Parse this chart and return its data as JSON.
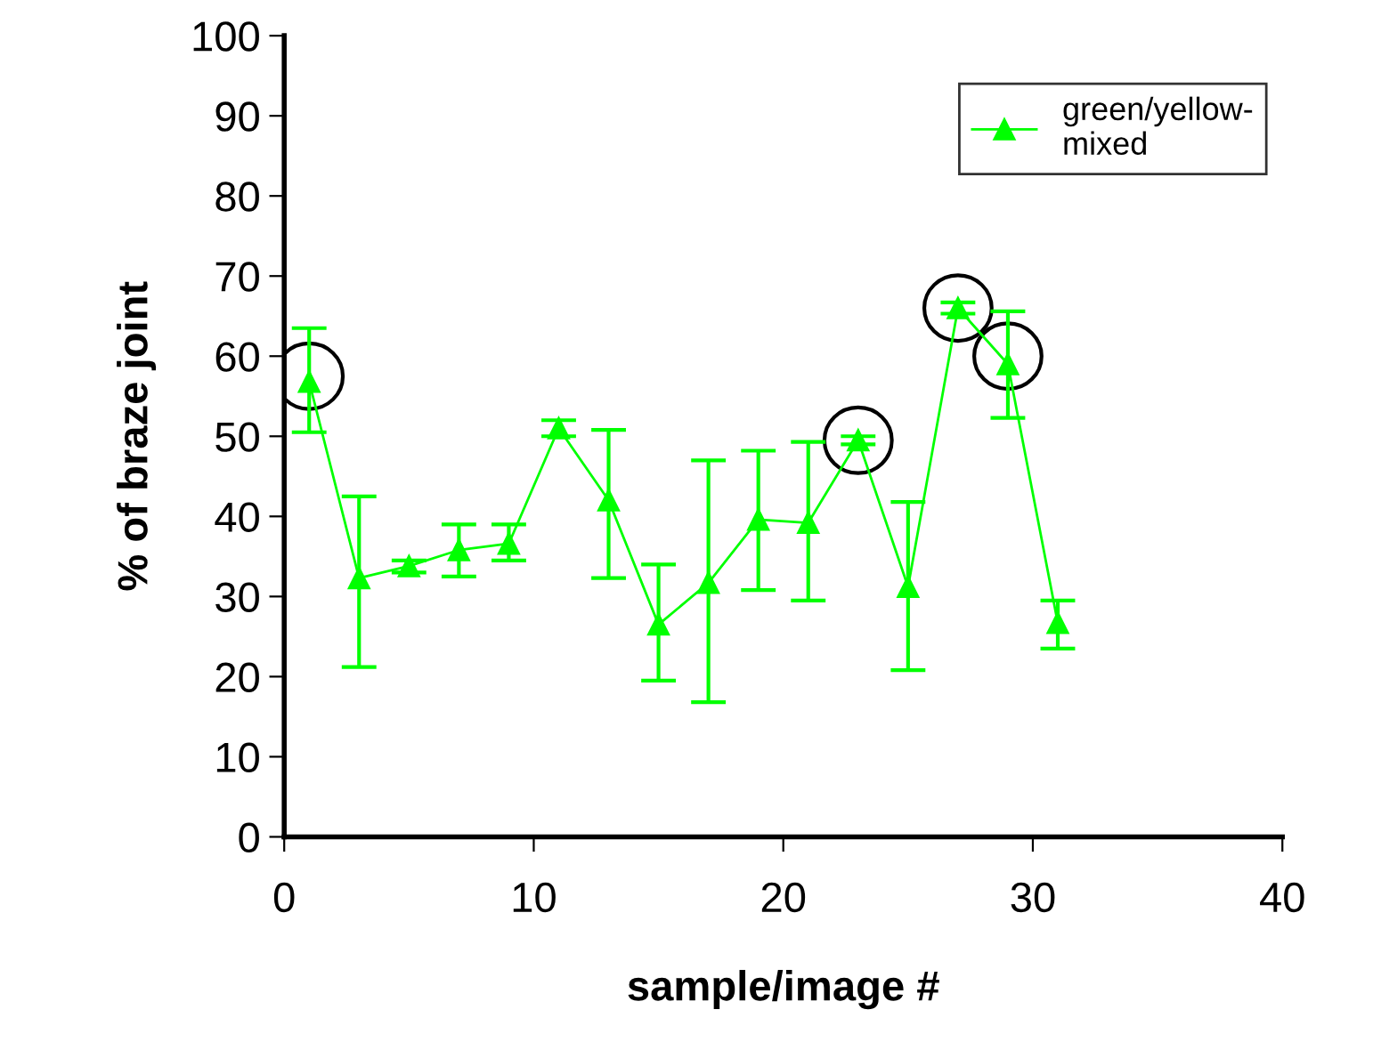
{
  "chart_data": {
    "type": "line",
    "xlabel": "sample/image #",
    "ylabel": "% of braze joint",
    "x": [
      1,
      3,
      5,
      7,
      9,
      11,
      13,
      15,
      17,
      19,
      21,
      23,
      25,
      27,
      29,
      31
    ],
    "series": [
      {
        "name": "green/yellow-\nmixed",
        "color": "#00ff00",
        "values": [
          56.8,
          32.3,
          33.8,
          35.8,
          36.6,
          51,
          42,
          26.5,
          31.7,
          39.6,
          39.2,
          49.5,
          31.2,
          66,
          59,
          26.7
        ],
        "errors": [
          [
            50.5,
            63.5
          ],
          [
            21.2,
            42.5
          ],
          [
            33,
            34.5
          ],
          [
            32.5,
            39
          ],
          [
            34.5,
            39
          ],
          [
            50,
            52
          ],
          [
            32.3,
            50.8
          ],
          [
            19.5,
            34
          ],
          [
            16.8,
            47
          ],
          [
            30.8,
            48.2
          ],
          [
            29.5,
            49.3
          ],
          [
            49,
            50
          ],
          [
            20.8,
            41.8
          ],
          [
            65.3,
            66.7
          ],
          [
            52.3,
            65.6
          ],
          [
            23.5,
            29.5
          ]
        ]
      }
    ],
    "xlim": [
      0,
      40
    ],
    "xticks": [
      0,
      10,
      20,
      30,
      40
    ],
    "ylim": [
      0,
      100
    ],
    "yticks": [
      0,
      10,
      20,
      30,
      40,
      50,
      60,
      70,
      80,
      90,
      100
    ],
    "marker": "triangle",
    "line_style": "solid",
    "grid": false,
    "legend": "top right"
  }
}
